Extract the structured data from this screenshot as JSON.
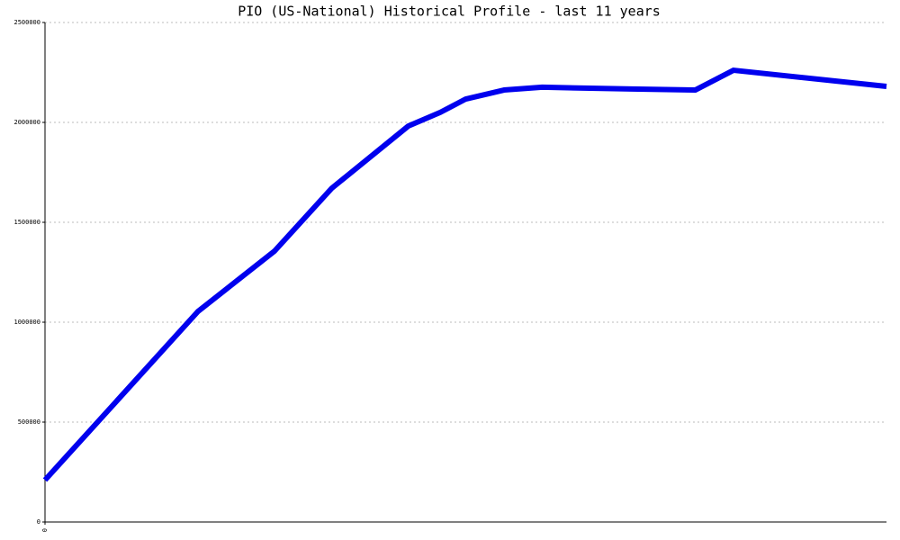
{
  "chart_data": {
    "type": "line",
    "title": "PIO (US-National) Historical Profile - last 11 years",
    "x": [
      0,
      24,
      36,
      45,
      57,
      62,
      66,
      72,
      78,
      92,
      102,
      108,
      132
    ],
    "series": [
      {
        "color": "#0000ee",
        "values": [
          210000,
          1054000,
          1356000,
          1671000,
          1982000,
          2050000,
          2117000,
          2162000,
          2176000,
          2167000,
          2162000,
          2261000,
          2180000
        ]
      }
    ],
    "xlim": [
      0,
      132
    ],
    "xticks": [
      0
    ],
    "ylim": [
      0,
      2500000
    ],
    "yticks": [
      0,
      500000,
      1000000,
      1500000,
      2000000,
      2500000
    ],
    "grid": true
  }
}
